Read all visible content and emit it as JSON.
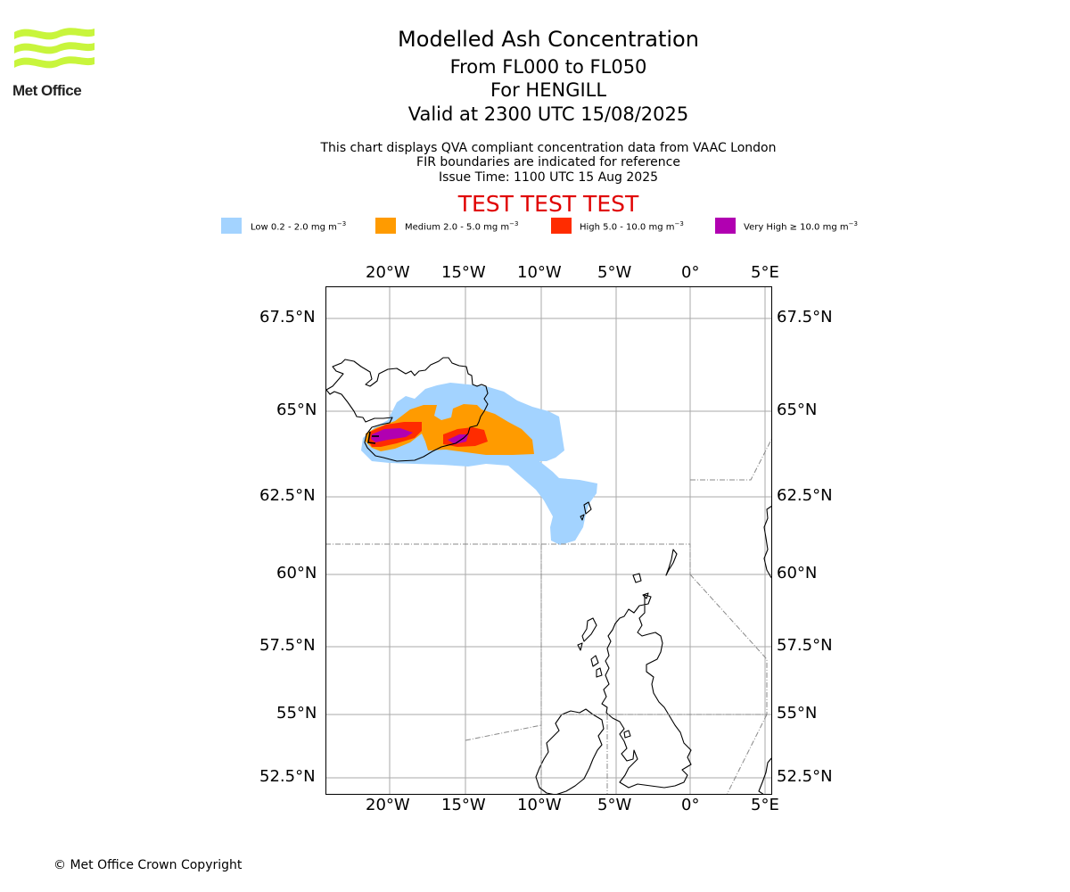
{
  "logo": {
    "text": "Met Office",
    "color": "#c8f53c"
  },
  "header": {
    "title": "Modelled Ash Concentration",
    "levels": "From FL000 to FL050",
    "location": "For HENGILL",
    "valid": "Valid at 2300 UTC 15/08/2025",
    "info_line1": "This chart displays QVA compliant concentration data from VAAC London",
    "info_line2": "FIR boundaries are indicated for reference",
    "info_line3": "Issue Time: 1100 UTC 15 Aug 2025",
    "test_banner": "TEST TEST TEST"
  },
  "legend": [
    {
      "label": "Low 0.2 - 2.0 mg m",
      "color": "#a3d3ff"
    },
    {
      "label": "Medium 2.0 - 5.0 mg m",
      "color": "#ff9b00"
    },
    {
      "label": "High 5.0 - 10.0 mg m",
      "color": "#ff2c00"
    },
    {
      "label": "Very High ≥ 10.0 mg m",
      "color": "#b100b1"
    }
  ],
  "legend_unit_exponent": "−3",
  "map": {
    "lon_ticks": [
      "20°W",
      "15°W",
      "10°W",
      "5°W",
      "0°",
      "5°E"
    ],
    "lat_ticks": [
      "67.5°N",
      "65°N",
      "62.5°N",
      "60°N",
      "57.5°N",
      "55°N",
      "52.5°N"
    ],
    "gridline_color": "#aaaaaa",
    "fir_color": "#888888"
  },
  "footer": {
    "copyright": "© Met Office Crown Copyright"
  }
}
